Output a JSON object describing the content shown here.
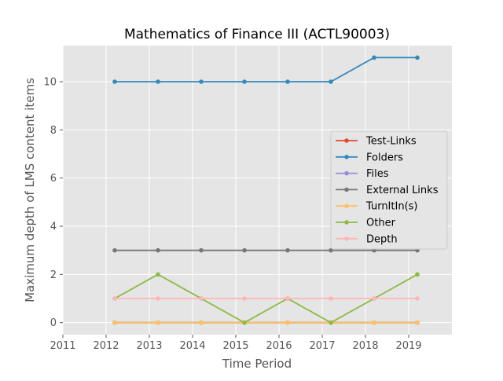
{
  "chart_data": {
    "type": "line",
    "title": "Mathematics of Finance III (ACTL90003)",
    "xlabel": "Time Period",
    "ylabel": "Maximum depth of LMS content items",
    "x_ticks": [
      "2011",
      "2012",
      "2013",
      "2014",
      "2015",
      "2016",
      "2017",
      "2018",
      "2019"
    ],
    "y_ticks": [
      "0",
      "2",
      "4",
      "6",
      "8",
      "10"
    ],
    "xlim": [
      2011,
      2020
    ],
    "ylim": [
      -0.5,
      11.5
    ],
    "grid": true,
    "legend_position": "center-right",
    "x": [
      2012.2,
      2013.2,
      2014.2,
      2015.2,
      2016.2,
      2017.2,
      2018.2,
      2019.2
    ],
    "series": [
      {
        "name": "Test-Links",
        "color": "#E24A33",
        "values": [
          0,
          0,
          0,
          0,
          0,
          0,
          0,
          0
        ]
      },
      {
        "name": "Folders",
        "color": "#348ABD",
        "values": [
          10,
          10,
          10,
          10,
          10,
          10,
          11,
          11
        ]
      },
      {
        "name": "Files",
        "color": "#988ED5",
        "values": [
          0,
          0,
          0,
          0,
          0,
          0,
          0,
          0
        ]
      },
      {
        "name": "External Links",
        "color": "#777777",
        "values": [
          3,
          3,
          3,
          3,
          3,
          3,
          3,
          3
        ]
      },
      {
        "name": "TurnItIn(s)",
        "color": "#FBC15E",
        "values": [
          0,
          0,
          0,
          0,
          0,
          0,
          0,
          0
        ]
      },
      {
        "name": "Other",
        "color": "#8EBA42",
        "values": [
          1,
          2,
          1,
          0,
          1,
          0,
          1,
          2
        ]
      },
      {
        "name": "Depth",
        "color": "#FFB5B8",
        "values": [
          1,
          1,
          1,
          1,
          1,
          1,
          1,
          1
        ]
      }
    ]
  }
}
